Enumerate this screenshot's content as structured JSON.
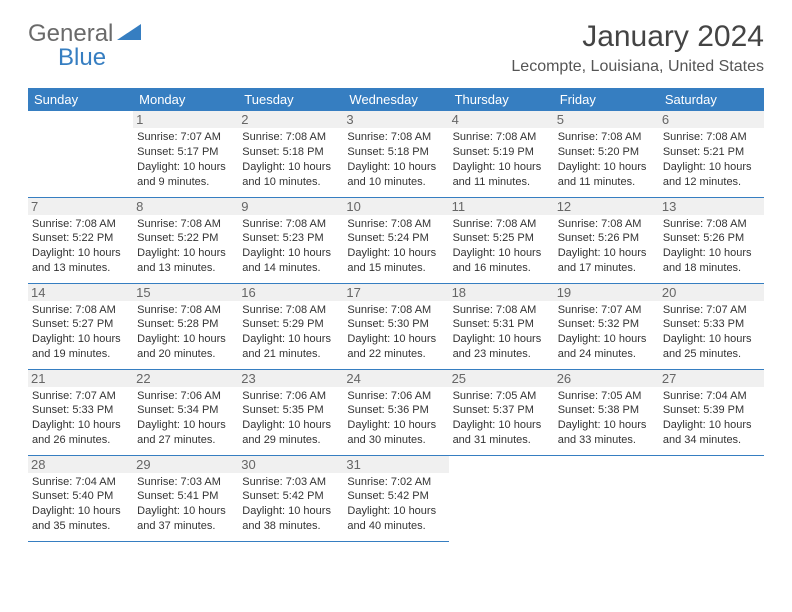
{
  "logo": {
    "part1": "General",
    "part2": "Blue"
  },
  "title": "January 2024",
  "location": "Lecompte, Louisiana, United States",
  "colors": {
    "accent": "#367ec1",
    "header_text": "#ffffff",
    "body_text": "#333333",
    "daynum_bg": "#f0f0f0"
  },
  "dayHeaders": [
    "Sunday",
    "Monday",
    "Tuesday",
    "Wednesday",
    "Thursday",
    "Friday",
    "Saturday"
  ],
  "weeks": [
    [
      {
        "empty": true
      },
      {
        "day": "1",
        "sunrise": "Sunrise: 7:07 AM",
        "sunset": "Sunset: 5:17 PM",
        "daylight1": "Daylight: 10 hours",
        "daylight2": "and 9 minutes."
      },
      {
        "day": "2",
        "sunrise": "Sunrise: 7:08 AM",
        "sunset": "Sunset: 5:18 PM",
        "daylight1": "Daylight: 10 hours",
        "daylight2": "and 10 minutes."
      },
      {
        "day": "3",
        "sunrise": "Sunrise: 7:08 AM",
        "sunset": "Sunset: 5:18 PM",
        "daylight1": "Daylight: 10 hours",
        "daylight2": "and 10 minutes."
      },
      {
        "day": "4",
        "sunrise": "Sunrise: 7:08 AM",
        "sunset": "Sunset: 5:19 PM",
        "daylight1": "Daylight: 10 hours",
        "daylight2": "and 11 minutes."
      },
      {
        "day": "5",
        "sunrise": "Sunrise: 7:08 AM",
        "sunset": "Sunset: 5:20 PM",
        "daylight1": "Daylight: 10 hours",
        "daylight2": "and 11 minutes."
      },
      {
        "day": "6",
        "sunrise": "Sunrise: 7:08 AM",
        "sunset": "Sunset: 5:21 PM",
        "daylight1": "Daylight: 10 hours",
        "daylight2": "and 12 minutes."
      }
    ],
    [
      {
        "day": "7",
        "sunrise": "Sunrise: 7:08 AM",
        "sunset": "Sunset: 5:22 PM",
        "daylight1": "Daylight: 10 hours",
        "daylight2": "and 13 minutes."
      },
      {
        "day": "8",
        "sunrise": "Sunrise: 7:08 AM",
        "sunset": "Sunset: 5:22 PM",
        "daylight1": "Daylight: 10 hours",
        "daylight2": "and 13 minutes."
      },
      {
        "day": "9",
        "sunrise": "Sunrise: 7:08 AM",
        "sunset": "Sunset: 5:23 PM",
        "daylight1": "Daylight: 10 hours",
        "daylight2": "and 14 minutes."
      },
      {
        "day": "10",
        "sunrise": "Sunrise: 7:08 AM",
        "sunset": "Sunset: 5:24 PM",
        "daylight1": "Daylight: 10 hours",
        "daylight2": "and 15 minutes."
      },
      {
        "day": "11",
        "sunrise": "Sunrise: 7:08 AM",
        "sunset": "Sunset: 5:25 PM",
        "daylight1": "Daylight: 10 hours",
        "daylight2": "and 16 minutes."
      },
      {
        "day": "12",
        "sunrise": "Sunrise: 7:08 AM",
        "sunset": "Sunset: 5:26 PM",
        "daylight1": "Daylight: 10 hours",
        "daylight2": "and 17 minutes."
      },
      {
        "day": "13",
        "sunrise": "Sunrise: 7:08 AM",
        "sunset": "Sunset: 5:26 PM",
        "daylight1": "Daylight: 10 hours",
        "daylight2": "and 18 minutes."
      }
    ],
    [
      {
        "day": "14",
        "sunrise": "Sunrise: 7:08 AM",
        "sunset": "Sunset: 5:27 PM",
        "daylight1": "Daylight: 10 hours",
        "daylight2": "and 19 minutes."
      },
      {
        "day": "15",
        "sunrise": "Sunrise: 7:08 AM",
        "sunset": "Sunset: 5:28 PM",
        "daylight1": "Daylight: 10 hours",
        "daylight2": "and 20 minutes."
      },
      {
        "day": "16",
        "sunrise": "Sunrise: 7:08 AM",
        "sunset": "Sunset: 5:29 PM",
        "daylight1": "Daylight: 10 hours",
        "daylight2": "and 21 minutes."
      },
      {
        "day": "17",
        "sunrise": "Sunrise: 7:08 AM",
        "sunset": "Sunset: 5:30 PM",
        "daylight1": "Daylight: 10 hours",
        "daylight2": "and 22 minutes."
      },
      {
        "day": "18",
        "sunrise": "Sunrise: 7:08 AM",
        "sunset": "Sunset: 5:31 PM",
        "daylight1": "Daylight: 10 hours",
        "daylight2": "and 23 minutes."
      },
      {
        "day": "19",
        "sunrise": "Sunrise: 7:07 AM",
        "sunset": "Sunset: 5:32 PM",
        "daylight1": "Daylight: 10 hours",
        "daylight2": "and 24 minutes."
      },
      {
        "day": "20",
        "sunrise": "Sunrise: 7:07 AM",
        "sunset": "Sunset: 5:33 PM",
        "daylight1": "Daylight: 10 hours",
        "daylight2": "and 25 minutes."
      }
    ],
    [
      {
        "day": "21",
        "sunrise": "Sunrise: 7:07 AM",
        "sunset": "Sunset: 5:33 PM",
        "daylight1": "Daylight: 10 hours",
        "daylight2": "and 26 minutes."
      },
      {
        "day": "22",
        "sunrise": "Sunrise: 7:06 AM",
        "sunset": "Sunset: 5:34 PM",
        "daylight1": "Daylight: 10 hours",
        "daylight2": "and 27 minutes."
      },
      {
        "day": "23",
        "sunrise": "Sunrise: 7:06 AM",
        "sunset": "Sunset: 5:35 PM",
        "daylight1": "Daylight: 10 hours",
        "daylight2": "and 29 minutes."
      },
      {
        "day": "24",
        "sunrise": "Sunrise: 7:06 AM",
        "sunset": "Sunset: 5:36 PM",
        "daylight1": "Daylight: 10 hours",
        "daylight2": "and 30 minutes."
      },
      {
        "day": "25",
        "sunrise": "Sunrise: 7:05 AM",
        "sunset": "Sunset: 5:37 PM",
        "daylight1": "Daylight: 10 hours",
        "daylight2": "and 31 minutes."
      },
      {
        "day": "26",
        "sunrise": "Sunrise: 7:05 AM",
        "sunset": "Sunset: 5:38 PM",
        "daylight1": "Daylight: 10 hours",
        "daylight2": "and 33 minutes."
      },
      {
        "day": "27",
        "sunrise": "Sunrise: 7:04 AM",
        "sunset": "Sunset: 5:39 PM",
        "daylight1": "Daylight: 10 hours",
        "daylight2": "and 34 minutes."
      }
    ],
    [
      {
        "day": "28",
        "sunrise": "Sunrise: 7:04 AM",
        "sunset": "Sunset: 5:40 PM",
        "daylight1": "Daylight: 10 hours",
        "daylight2": "and 35 minutes."
      },
      {
        "day": "29",
        "sunrise": "Sunrise: 7:03 AM",
        "sunset": "Sunset: 5:41 PM",
        "daylight1": "Daylight: 10 hours",
        "daylight2": "and 37 minutes."
      },
      {
        "day": "30",
        "sunrise": "Sunrise: 7:03 AM",
        "sunset": "Sunset: 5:42 PM",
        "daylight1": "Daylight: 10 hours",
        "daylight2": "and 38 minutes."
      },
      {
        "day": "31",
        "sunrise": "Sunrise: 7:02 AM",
        "sunset": "Sunset: 5:42 PM",
        "daylight1": "Daylight: 10 hours",
        "daylight2": "and 40 minutes."
      },
      {
        "empty": true
      },
      {
        "empty": true
      },
      {
        "empty": true
      }
    ]
  ]
}
